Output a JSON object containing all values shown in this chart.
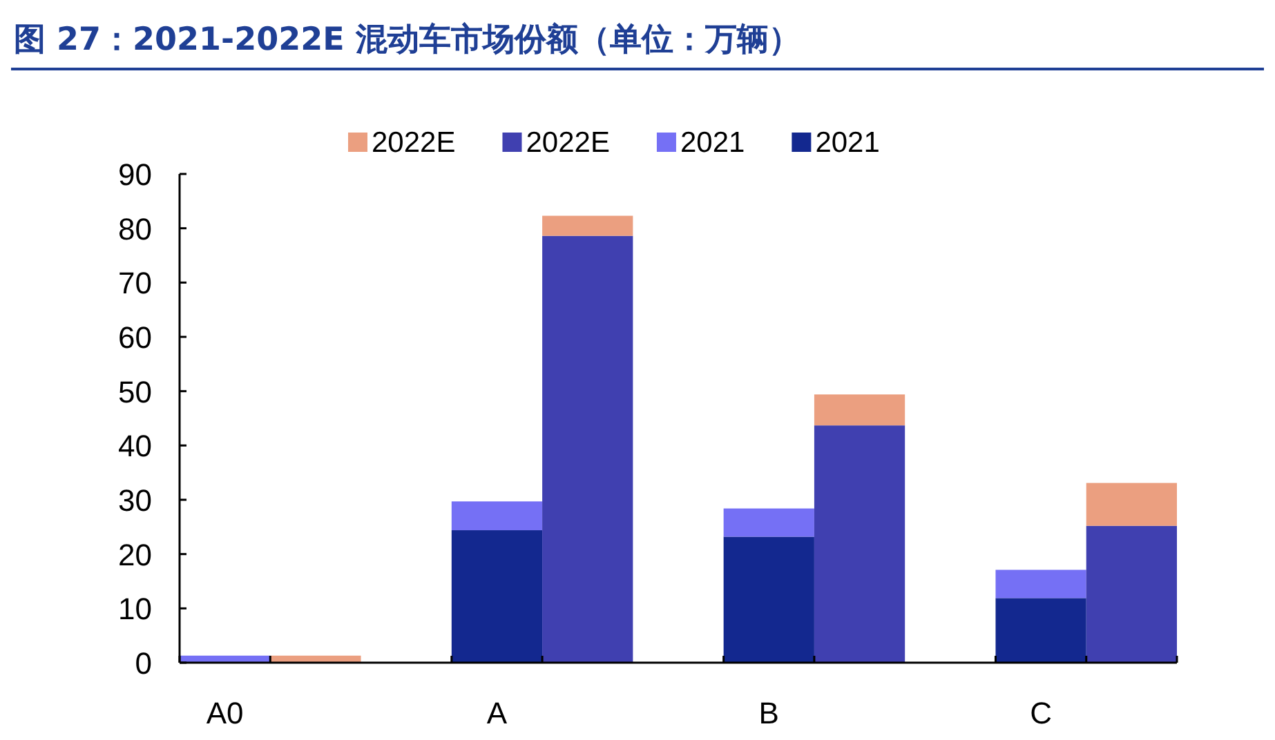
{
  "chart_data": {
    "type": "bar",
    "title": "图 27：2021-2022E 混动车市场份额（单位：万辆）",
    "stacked": true,
    "legend": "top",
    "categories": [
      "A0",
      null,
      "A",
      null,
      "B",
      null,
      "C",
      null
    ],
    "series": [
      {
        "name": "2021",
        "color": "#13288f",
        "values": [
          0,
          null,
          24.4,
          null,
          23.2,
          null,
          11.9,
          null
        ]
      },
      {
        "name": "2021",
        "color": "#7570f5",
        "values": [
          1.3,
          null,
          5.3,
          null,
          5.2,
          null,
          5.2,
          null
        ]
      },
      {
        "name": "2022E",
        "color": "#4040b0",
        "values": [
          null,
          0,
          null,
          78.6,
          null,
          43.7,
          null,
          25.2
        ]
      },
      {
        "name": "2022E",
        "color": "#eb9f80",
        "values": [
          null,
          1.3,
          null,
          3.7,
          null,
          5.7,
          null,
          7.9
        ]
      }
    ],
    "ylim": [
      0,
      90
    ],
    "yticks": [
      0,
      10,
      20,
      30,
      40,
      50,
      60,
      70,
      80,
      90
    ]
  }
}
